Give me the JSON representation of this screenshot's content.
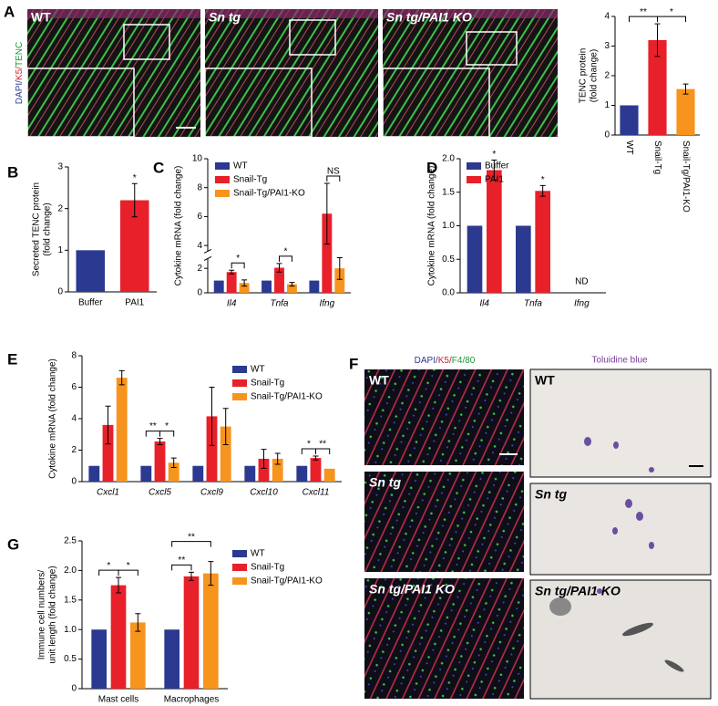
{
  "panels": {
    "A": {
      "letter": "A",
      "stain": [
        "DAPI/",
        "K5/",
        "TENC"
      ],
      "images": [
        "WT",
        "Sn tg",
        "Sn tg/PAI1 KO"
      ]
    },
    "F": {
      "letter": "F",
      "stain": [
        "DAPI/",
        "K5/",
        "F4/80"
      ],
      "stain2": "Toluidine blue",
      "images": [
        [
          "WT",
          "WT"
        ],
        [
          "Sn tg",
          "Sn tg"
        ],
        [
          "Sn tg/PAI1 KO",
          "Sn tg/PAI1 KO"
        ]
      ]
    }
  },
  "chart_data": [
    {
      "type": "bar",
      "categories": [
        "WT",
        "Snail-Tg",
        "Snail-Tg/PAI1-KO"
      ],
      "values": [
        1,
        3.2,
        1.55
      ],
      "errors": [
        null,
        0.55,
        0.17
      ],
      "colors": [
        "#2b3990",
        "#e8202a",
        "#f7941d"
      ],
      "ylim": [
        0,
        4
      ],
      "yticks": [
        0,
        1,
        2,
        3,
        4
      ],
      "ylabel": [
        "TENC protein",
        "(fold change)"
      ],
      "annotations": [
        "**",
        "*"
      ],
      "rotate_categories": true
    },
    {
      "type": "bar",
      "panel": "B",
      "categories": [
        "Buffer",
        "PAI1"
      ],
      "values": [
        1,
        2.2
      ],
      "errors": [
        null,
        0.4
      ],
      "colors": [
        "#2b3990",
        "#e8202a"
      ],
      "ylim": [
        0,
        3
      ],
      "yticks": [
        0,
        1,
        2,
        3
      ],
      "ylabel": [
        "Secreted TENC protein",
        "(fold change)"
      ],
      "annotations": [
        "*"
      ]
    },
    {
      "type": "bar",
      "panel": "C",
      "categories": [
        "Il4",
        "Tnfa",
        "Ifng"
      ],
      "italic_categories": true,
      "series": [
        {
          "name": "WT",
          "color": "#2b3990",
          "values": [
            1,
            1,
            1
          ],
          "errors": [
            null,
            null,
            null
          ]
        },
        {
          "name": "Snail-Tg",
          "color": "#e8202a",
          "values": [
            1.7,
            2.05,
            6.2
          ],
          "errors": [
            0.15,
            0.35,
            2.1
          ]
        },
        {
          "name": "Snail-Tg/PAI1-KO",
          "color": "#f7941d",
          "values": [
            0.8,
            0.7,
            2.0
          ],
          "errors": [
            0.25,
            0.15,
            0.9
          ]
        }
      ],
      "ylim": [
        0,
        10
      ],
      "yticks": [
        0,
        2,
        4,
        6,
        8,
        10
      ],
      "ybreak": [
        2.8,
        3.6
      ],
      "ylabel": [
        "Cytokine mRNA (fold change)"
      ],
      "annotations": [
        "*",
        "*",
        "NS"
      ]
    },
    {
      "type": "bar",
      "panel": "D",
      "categories": [
        "Il4",
        "Tnfa",
        "Ifng"
      ],
      "italic_categories": true,
      "series": [
        {
          "name": "Buffer",
          "color": "#2b3990",
          "values": [
            1,
            1,
            null
          ],
          "errors": [
            null,
            null,
            null
          ]
        },
        {
          "name": "PAI1",
          "color": "#e8202a",
          "values": [
            1.83,
            1.52,
            null
          ],
          "errors": [
            0.15,
            0.08,
            null
          ]
        }
      ],
      "ylim": [
        0,
        2
      ],
      "yticks": [
        {
          "value": 0,
          "label": "0.0"
        },
        0.5,
        {
          "value": 1,
          "label": "1.0"
        },
        1.5,
        {
          "value": 2,
          "label": "2.0"
        }
      ],
      "ylabel": [
        "Cytokine mRNA (fold change)"
      ],
      "annotations": [
        "*",
        "*",
        "ND"
      ]
    },
    {
      "type": "bar",
      "panel": "E",
      "categories": [
        "Cxcl1",
        "Cxcl5",
        "Cxcl9",
        "Cxcl10",
        "Cxcl11"
      ],
      "italic_categories": true,
      "series": [
        {
          "name": "WT",
          "color": "#2b3990",
          "values": [
            1,
            1,
            1,
            1,
            1
          ],
          "errors": [
            null,
            null,
            null,
            null,
            null
          ]
        },
        {
          "name": "Snail-Tg",
          "color": "#e8202a",
          "values": [
            3.6,
            2.55,
            4.15,
            1.45,
            1.5
          ],
          "errors": [
            1.2,
            0.2,
            1.85,
            0.6,
            0.12
          ]
        },
        {
          "name": "Snail-Tg/PAI1-KO",
          "color": "#f7941d",
          "values": [
            6.6,
            1.2,
            3.5,
            1.45,
            0.82
          ],
          "errors": [
            0.45,
            0.3,
            1.15,
            0.35,
            null
          ]
        }
      ],
      "ylim": [
        0,
        8
      ],
      "yticks": [
        0,
        2,
        4,
        6,
        8
      ],
      "ylabel": [
        "Cytokine mRNA (fold change)"
      ],
      "annotations": [
        "**",
        "*",
        "*",
        "**"
      ]
    },
    {
      "type": "bar",
      "panel": "G",
      "categories": [
        "Mast cells",
        "Macrophages"
      ],
      "series": [
        {
          "name": "WT",
          "color": "#2b3990",
          "values": [
            1,
            1
          ],
          "errors": [
            null,
            null
          ]
        },
        {
          "name": "Snail-Tg",
          "color": "#e8202a",
          "values": [
            1.75,
            1.9
          ],
          "errors": [
            0.13,
            0.07
          ]
        },
        {
          "name": "Snail-Tg/PAI1-KO",
          "color": "#f7941d",
          "values": [
            1.12,
            1.95
          ],
          "errors": [
            0.15,
            0.2
          ]
        }
      ],
      "ylim": [
        0,
        2.5
      ],
      "yticks": [
        0,
        0.5,
        {
          "value": 1,
          "label": "1.0"
        },
        1.5,
        {
          "value": 2,
          "label": "2.0"
        },
        2.5
      ],
      "ylabel": [
        "Immune cell numbers/",
        "unit length (fold change)"
      ],
      "annotations": [
        "*",
        "*",
        "**",
        "**"
      ]
    }
  ]
}
